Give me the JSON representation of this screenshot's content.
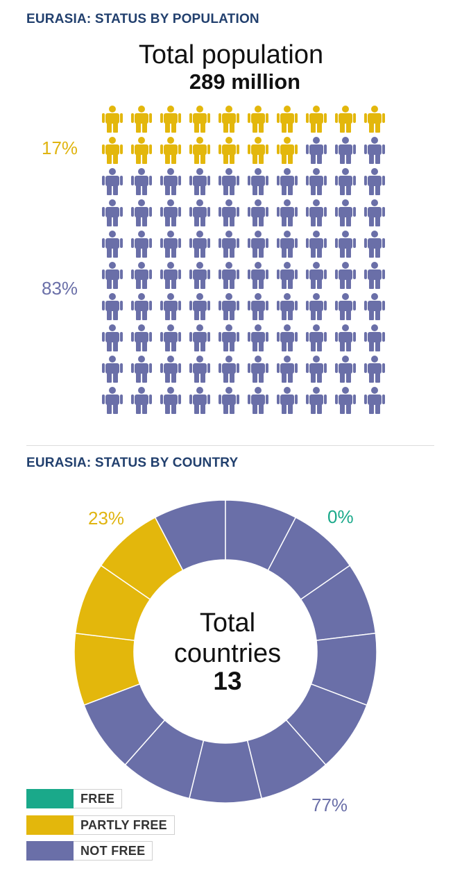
{
  "section_population": {
    "title": "EURASIA: STATUS BY POPULATION",
    "total_label": "Total population",
    "total_value": "289 million",
    "pct_partly_free": "17%",
    "pct_not_free": "83%"
  },
  "section_country": {
    "title": "EURASIA: STATUS BY COUNTRY",
    "total_label_line1": "Total",
    "total_label_line2": "countries",
    "total_value": "13",
    "pct_free": "0%",
    "pct_partly_free": "23%",
    "pct_not_free": "77%"
  },
  "legend": {
    "free": "FREE",
    "partly_free": "PARTLY FREE",
    "not_free": "NOT FREE"
  },
  "colors": {
    "free": "#1aa98a",
    "partly_free": "#e3b70c",
    "not_free": "#6a6fa8",
    "title": "#22406e"
  },
  "chart_data": [
    {
      "type": "pictogram",
      "title": "EURASIA: STATUS BY POPULATION",
      "total_people_icons": 100,
      "series": [
        {
          "name": "PARTLY FREE",
          "value": 17
        },
        {
          "name": "NOT FREE",
          "value": 83
        }
      ]
    },
    {
      "type": "pie",
      "title": "EURASIA: STATUS BY COUNTRY",
      "total": 13,
      "series": [
        {
          "name": "FREE",
          "value": 0,
          "percent": 0
        },
        {
          "name": "PARTLY FREE",
          "value": 3,
          "percent": 23
        },
        {
          "name": "NOT FREE",
          "value": 10,
          "percent": 77
        }
      ]
    }
  ]
}
